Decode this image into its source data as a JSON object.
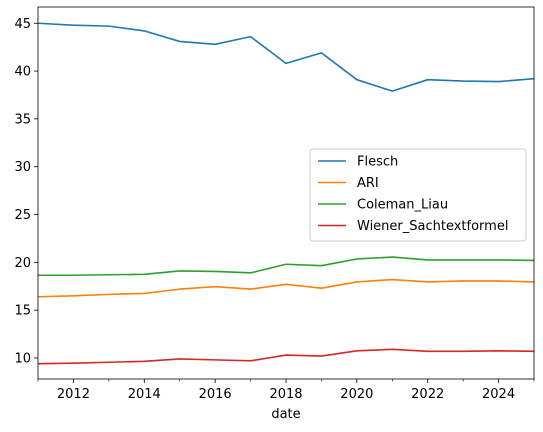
{
  "chart_data": {
    "type": "line",
    "xlabel": "date",
    "ylabel": "",
    "xlim": [
      2011,
      2025
    ],
    "ylim": [
      7.8,
      46.7
    ],
    "x_ticks": [
      2012,
      2014,
      2016,
      2018,
      2020,
      2022,
      2024
    ],
    "y_ticks": [
      10,
      15,
      20,
      25,
      30,
      35,
      40,
      45
    ],
    "grid": false,
    "legend_position": "right",
    "x": [
      2011,
      2012,
      2013,
      2014,
      2015,
      2016,
      2017,
      2018,
      2019,
      2020,
      2021,
      2022,
      2023,
      2024,
      2025
    ],
    "series": [
      {
        "name": "Flesch",
        "color": "#1f77b4",
        "values": [
          45.0,
          44.8,
          44.7,
          44.2,
          43.1,
          42.8,
          43.6,
          40.8,
          41.9,
          39.1,
          37.9,
          39.1,
          38.95,
          38.9,
          39.2
        ]
      },
      {
        "name": "ARI",
        "color": "#ff7f0e",
        "values": [
          16.4,
          16.5,
          16.65,
          16.75,
          17.2,
          17.45,
          17.2,
          17.7,
          17.3,
          17.95,
          18.2,
          17.95,
          18.05,
          18.05,
          17.95
        ]
      },
      {
        "name": "Coleman_Liau",
        "color": "#2ca02c",
        "values": [
          18.65,
          18.65,
          18.7,
          18.75,
          19.1,
          19.05,
          18.9,
          19.8,
          19.65,
          20.35,
          20.55,
          20.25,
          20.25,
          20.25,
          20.2
        ]
      },
      {
        "name": "Wiener_Sachtextformel",
        "color": "#d62728",
        "values": [
          9.4,
          9.45,
          9.55,
          9.65,
          9.9,
          9.8,
          9.7,
          10.3,
          10.2,
          10.75,
          10.9,
          10.7,
          10.7,
          10.75,
          10.7
        ]
      }
    ]
  }
}
